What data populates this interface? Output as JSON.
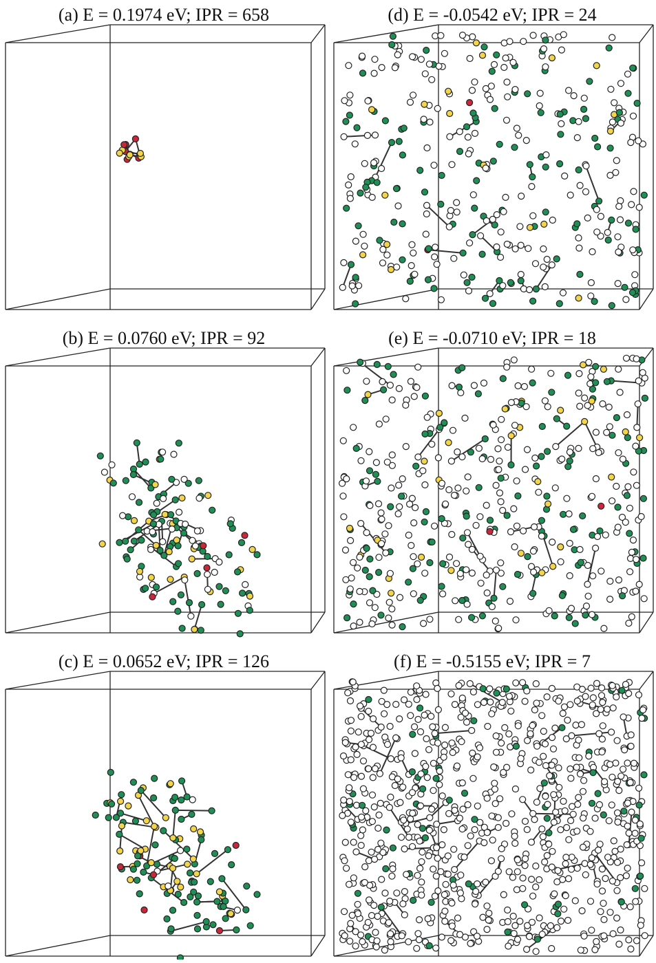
{
  "panels": [
    {
      "title": "(a)  E =  0.1974 eV; IPR = 658"
    },
    {
      "title": "(d)  E = -0.0542 eV; IPR = 24"
    },
    {
      "title": "(b)  E =  0.0760 eV; IPR = 92"
    },
    {
      "title": "(e)  E = -0.0710 eV; IPR = 18"
    },
    {
      "title": "(c)  E =  0.0652 eV; IPR = 126"
    },
    {
      "title": "(f)  E = -0.5155 eV; IPR = 7"
    }
  ]
}
